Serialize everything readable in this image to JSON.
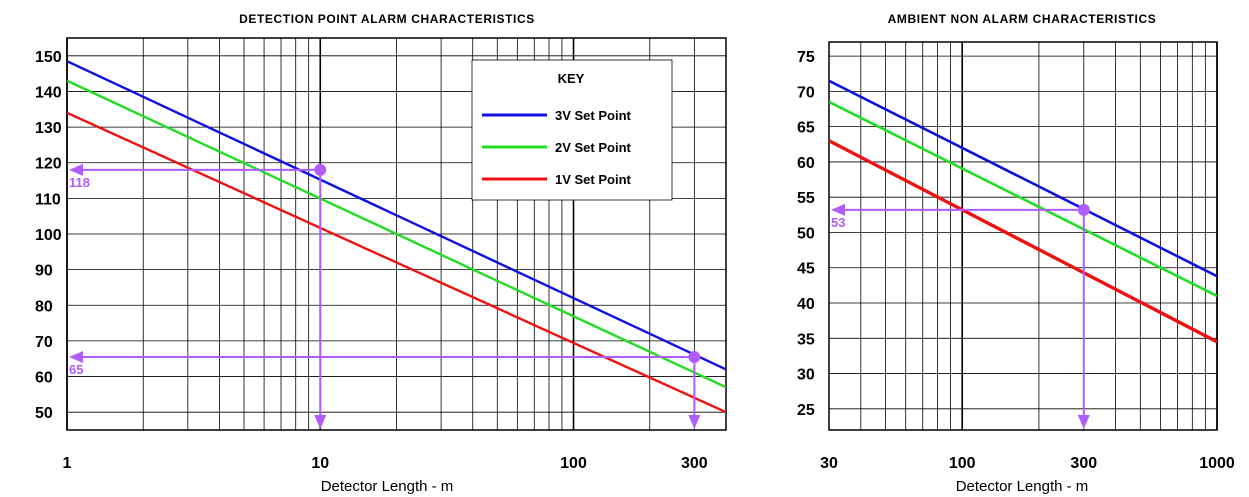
{
  "chart_data": [
    {
      "type": "line",
      "title": "DETECTION POINT ALARM CHARACTERISTICS",
      "xlabel": "Detector Length - m",
      "ylabel": "",
      "x_scale": "log",
      "xlim": [
        1,
        400
      ],
      "ylim": [
        45,
        155
      ],
      "x_ticks": [
        1,
        10,
        100,
        300
      ],
      "x_tick_labels": [
        "1",
        "10",
        "100",
        "300"
      ],
      "y_ticks": [
        50,
        60,
        70,
        80,
        90,
        100,
        110,
        120,
        130,
        140,
        150
      ],
      "y_tick_labels": [
        "50",
        "60",
        "70",
        "80",
        "90",
        "100",
        "110",
        "120",
        "130",
        "140",
        "150"
      ],
      "grid": true,
      "legend": {
        "title": "KEY",
        "placement": "top-right",
        "entries": [
          "3V Set Point",
          "2V Set Point",
          "1V Set Point"
        ]
      },
      "series": [
        {
          "name": "3V Set Point",
          "color": "#1010e0",
          "x": [
            1,
            400
          ],
          "y": [
            148.5,
            62
          ]
        },
        {
          "name": "2V Set Point",
          "color": "#22dd22",
          "x": [
            1,
            400
          ],
          "y": [
            143,
            57
          ]
        },
        {
          "name": "1V Set Point",
          "color": "#ee1111",
          "x": [
            1,
            400
          ],
          "y": [
            134,
            50
          ]
        }
      ],
      "annotations": [
        {
          "label": "118",
          "x": 10,
          "y": 118,
          "color": "#b05cff"
        },
        {
          "label": "65",
          "x": 300,
          "y": 65.5,
          "color": "#b05cff"
        }
      ]
    },
    {
      "type": "line",
      "title": "AMBIENT NON ALARM CHARACTERISTICS",
      "xlabel": "Detector Length - m",
      "ylabel": "",
      "x_scale": "log",
      "xlim": [
        30,
        1000
      ],
      "ylim": [
        22,
        77
      ],
      "x_ticks": [
        30,
        100,
        300,
        1000
      ],
      "x_tick_labels": [
        "30",
        "100",
        "300",
        "1000"
      ],
      "y_ticks": [
        25,
        30,
        35,
        40,
        45,
        50,
        55,
        60,
        65,
        70,
        75
      ],
      "y_tick_labels": [
        "25",
        "30",
        "35",
        "40",
        "45",
        "50",
        "55",
        "60",
        "65",
        "70",
        "75"
      ],
      "grid": true,
      "series": [
        {
          "name": "3V Set Point",
          "color": "#1010e0",
          "x": [
            30,
            1000
          ],
          "y": [
            71.5,
            43.8
          ]
        },
        {
          "name": "2V Set Point",
          "color": "#22dd22",
          "x": [
            30,
            1000
          ],
          "y": [
            68.5,
            41
          ]
        },
        {
          "name": "1V Set Point",
          "color": "#ee1111",
          "x": [
            30,
            1000
          ],
          "y": [
            63,
            34.5
          ]
        }
      ],
      "annotations": [
        {
          "label": "53",
          "x": 300,
          "y": 53.2,
          "color": "#b05cff"
        }
      ]
    }
  ]
}
